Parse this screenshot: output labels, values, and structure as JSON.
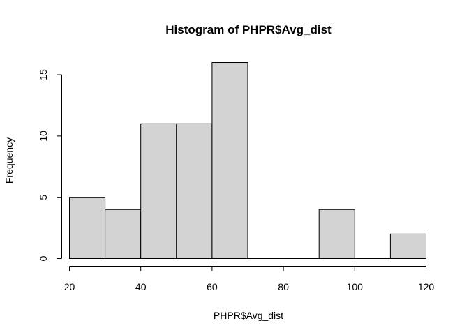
{
  "chart_data": {
    "type": "bar",
    "title": "Histogram of PHPR$Avg_dist",
    "xlabel": "PHPR$Avg_dist",
    "ylabel": "Frequency",
    "bins": [
      {
        "from": 20,
        "to": 30,
        "count": 5
      },
      {
        "from": 30,
        "to": 40,
        "count": 4
      },
      {
        "from": 40,
        "to": 50,
        "count": 11
      },
      {
        "from": 50,
        "to": 60,
        "count": 11
      },
      {
        "from": 60,
        "to": 70,
        "count": 16
      },
      {
        "from": 70,
        "to": 80,
        "count": 0
      },
      {
        "from": 80,
        "to": 90,
        "count": 0
      },
      {
        "from": 90,
        "to": 100,
        "count": 4
      },
      {
        "from": 100,
        "to": 110,
        "count": 0
      },
      {
        "from": 110,
        "to": 120,
        "count": 2
      }
    ],
    "xlim": [
      20,
      120
    ],
    "ylim": [
      0,
      16
    ],
    "x_ticks": [
      20,
      40,
      60,
      80,
      100,
      120
    ],
    "y_ticks": [
      0,
      5,
      10,
      15
    ],
    "grid": false,
    "colors": {
      "bar_fill": "#d3d3d3",
      "bar_stroke": "#000000"
    }
  }
}
